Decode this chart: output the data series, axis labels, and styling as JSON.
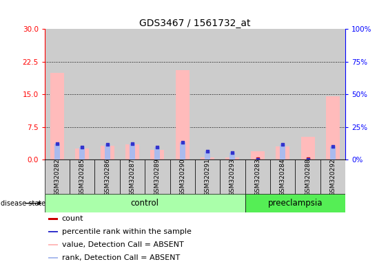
{
  "title": "GDS3467 / 1561732_at",
  "samples": [
    "GSM320282",
    "GSM320285",
    "GSM320286",
    "GSM320287",
    "GSM320289",
    "GSM320290",
    "GSM320291",
    "GSM320293",
    "GSM320283",
    "GSM320284",
    "GSM320288",
    "GSM320292"
  ],
  "control_count": 8,
  "disease_state_label": "disease state",
  "group_labels": [
    "control",
    "preeclampsia"
  ],
  "value_absent": [
    20.0,
    2.5,
    3.2,
    3.5,
    2.2,
    20.5,
    0.5,
    0.5,
    2.0,
    3.0,
    5.2,
    14.5
  ],
  "rank_absent": [
    12.5,
    9.5,
    11.5,
    12.5,
    9.5,
    13.5,
    6.5,
    5.5,
    0.0,
    11.5,
    0.0,
    10.0
  ],
  "count_red_y": [
    0.15,
    0.15,
    0.15,
    0.15,
    0.15,
    0.15,
    0.15,
    0.15,
    0.15,
    0.15,
    0.15,
    0.15
  ],
  "rank_blue_y": [
    12.5,
    9.5,
    11.5,
    12.5,
    9.5,
    13.5,
    6.5,
    5.5,
    0.0,
    11.5,
    0.0,
    10.0
  ],
  "ylim_left": [
    0,
    30
  ],
  "ylim_right": [
    0,
    100
  ],
  "yticks_left": [
    0,
    7.5,
    15,
    22.5,
    30
  ],
  "yticks_right": [
    0,
    25,
    50,
    75,
    100
  ],
  "color_value_absent": "#FFBBBB",
  "color_rank_absent": "#AABBEE",
  "color_count": "#CC0000",
  "color_rank": "#3333CC",
  "color_control_bg": "#AAFFAA",
  "color_preeclampsia_bg": "#55EE55",
  "color_sample_bg": "#CCCCCC",
  "legend_items": [
    {
      "label": "count",
      "color": "#CC0000"
    },
    {
      "label": "percentile rank within the sample",
      "color": "#3333CC"
    },
    {
      "label": "value, Detection Call = ABSENT",
      "color": "#FFBBBB"
    },
    {
      "label": "rank, Detection Call = ABSENT",
      "color": "#AABBEE"
    }
  ]
}
